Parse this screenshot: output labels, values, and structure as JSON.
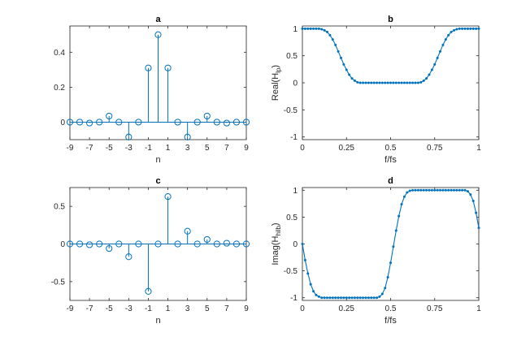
{
  "colors": {
    "series": "#0072bd",
    "axes": "#262626",
    "grid": "#dfdfdf"
  },
  "chart_data": [
    {
      "id": "a",
      "type": "stem",
      "title": "a",
      "xlabel": "n",
      "ylabel": "",
      "xlim": [
        -9,
        9
      ],
      "ylim": [
        -0.1,
        0.55
      ],
      "xticks": [
        -9,
        -7,
        -5,
        -3,
        -1,
        1,
        3,
        5,
        7,
        9
      ],
      "xtick_labels": [
        "-9",
        "-7",
        "-5",
        "-3",
        "-1",
        "1",
        "3",
        "5",
        "7",
        "9"
      ],
      "yticks": [
        0,
        0.2,
        0.4
      ],
      "ytick_labels": [
        "0",
        "0.2",
        "0.4"
      ],
      "grid": true,
      "x": [
        -9,
        -8,
        -7,
        -6,
        -5,
        -4,
        -3,
        -2,
        -1,
        0,
        1,
        2,
        3,
        4,
        5,
        6,
        7,
        8,
        9
      ],
      "y": [
        0,
        0,
        -0.005,
        0,
        0.035,
        0,
        -0.085,
        0,
        0.31,
        0.5,
        0.31,
        0,
        -0.085,
        0,
        0.035,
        0,
        -0.005,
        0,
        0
      ]
    },
    {
      "id": "b",
      "type": "line",
      "title": "b",
      "xlabel": "f/fs",
      "ylabel": "Real(H",
      "ylabel_sub": "lp",
      "ylabel_end": ")",
      "xlim": [
        0,
        1
      ],
      "ylim": [
        -1.05,
        1.05
      ],
      "xticks": [
        0,
        0.25,
        0.5,
        0.75,
        1
      ],
      "xtick_labels": [
        "0",
        "0.25",
        "0.5",
        "0.75",
        "1"
      ],
      "yticks": [
        -1,
        -0.5,
        0,
        0.5,
        1
      ],
      "ytick_labels": [
        "-1",
        "-0.5",
        "0",
        "0.5",
        "1"
      ],
      "grid": true,
      "x": [
        0,
        0.0156,
        0.0313,
        0.0469,
        0.0625,
        0.0781,
        0.0938,
        0.1094,
        0.125,
        0.1406,
        0.1563,
        0.1719,
        0.1875,
        0.2031,
        0.2188,
        0.2344,
        0.25,
        0.2656,
        0.2813,
        0.2969,
        0.3125,
        0.3281,
        0.3438,
        0.3594,
        0.375,
        0.3906,
        0.4063,
        0.4219,
        0.4375,
        0.4531,
        0.4688,
        0.4844,
        0.5,
        0.5156,
        0.5313,
        0.5469,
        0.5625,
        0.5781,
        0.5938,
        0.6094,
        0.625,
        0.6406,
        0.6563,
        0.6719,
        0.6875,
        0.7031,
        0.7188,
        0.7344,
        0.75,
        0.7656,
        0.7813,
        0.7969,
        0.8125,
        0.8281,
        0.8438,
        0.8594,
        0.875,
        0.8906,
        0.9063,
        0.9219,
        0.9375,
        0.9531,
        0.9688,
        0.9844,
        1
      ],
      "y": [
        1,
        1,
        1,
        1,
        1,
        1,
        1,
        0.99,
        0.97,
        0.94,
        0.88,
        0.8,
        0.7,
        0.58,
        0.46,
        0.34,
        0.24,
        0.15,
        0.08,
        0.04,
        0.01,
        0,
        0,
        0,
        0,
        0,
        0,
        0,
        0,
        0,
        0,
        0,
        0,
        0,
        0,
        0,
        0,
        0,
        0,
        0,
        0,
        0,
        0,
        0.01,
        0.04,
        0.08,
        0.15,
        0.24,
        0.34,
        0.46,
        0.58,
        0.7,
        0.8,
        0.88,
        0.94,
        0.97,
        0.99,
        1,
        1,
        1,
        1,
        1,
        1,
        1,
        1
      ]
    },
    {
      "id": "c",
      "type": "stem",
      "title": "c",
      "xlabel": "n",
      "ylabel": "",
      "xlim": [
        -9,
        9
      ],
      "ylim": [
        -0.75,
        0.75
      ],
      "xticks": [
        -9,
        -7,
        -5,
        -3,
        -1,
        1,
        3,
        5,
        7,
        9
      ],
      "xtick_labels": [
        "-9",
        "-7",
        "-5",
        "-3",
        "-1",
        "1",
        "3",
        "5",
        "7",
        "9"
      ],
      "yticks": [
        -0.5,
        0,
        0.5
      ],
      "ytick_labels": [
        "-0.5",
        "0",
        "0.5"
      ],
      "grid": true,
      "x": [
        -9,
        -8,
        -7,
        -6,
        -5,
        -4,
        -3,
        -2,
        -1,
        0,
        1,
        2,
        3,
        4,
        5,
        6,
        7,
        8,
        9
      ],
      "y": [
        0,
        0,
        -0.01,
        0,
        -0.06,
        0,
        -0.17,
        0,
        -0.63,
        0,
        0.63,
        0,
        0.17,
        0,
        0.06,
        0,
        0.01,
        0,
        0
      ]
    },
    {
      "id": "d",
      "type": "line",
      "title": "d",
      "xlabel": "f/fs",
      "ylabel": "Imag(H",
      "ylabel_sub": "hilb",
      "ylabel_end": ")",
      "xlim": [
        0,
        1
      ],
      "ylim": [
        -1.05,
        1.05
      ],
      "xticks": [
        0,
        0.25,
        0.5,
        0.75,
        1
      ],
      "xtick_labels": [
        "0",
        "0.25",
        "0.5",
        "0.75",
        "1"
      ],
      "yticks": [
        -1,
        -0.5,
        0,
        0.5,
        1
      ],
      "ytick_labels": [
        "-1",
        "-0.5",
        "0",
        "0.5",
        "1"
      ],
      "grid": true,
      "x": [
        0,
        0.0156,
        0.0313,
        0.0469,
        0.0625,
        0.0781,
        0.0938,
        0.1094,
        0.125,
        0.1406,
        0.1563,
        0.1719,
        0.1875,
        0.2031,
        0.2188,
        0.2344,
        0.25,
        0.2656,
        0.2813,
        0.2969,
        0.3125,
        0.3281,
        0.3438,
        0.3594,
        0.375,
        0.3906,
        0.4063,
        0.4219,
        0.4375,
        0.4531,
        0.4688,
        0.4844,
        0.5,
        0.5156,
        0.5313,
        0.5469,
        0.5625,
        0.5781,
        0.5938,
        0.6094,
        0.625,
        0.6406,
        0.6563,
        0.6719,
        0.6875,
        0.7031,
        0.7188,
        0.7344,
        0.75,
        0.7656,
        0.7813,
        0.7969,
        0.8125,
        0.8281,
        0.8438,
        0.8594,
        0.875,
        0.8906,
        0.9063,
        0.9219,
        0.9375,
        0.9531,
        0.9688,
        0.9844,
        1
      ],
      "y": [
        0,
        -0.3,
        -0.55,
        -0.75,
        -0.88,
        -0.95,
        -0.98,
        -1,
        -1,
        -1,
        -1,
        -1,
        -1,
        -1,
        -1,
        -1,
        -1,
        -1,
        -1,
        -1,
        -1,
        -1,
        -1,
        -1,
        -1,
        -1,
        -1,
        -1,
        -0.98,
        -0.93,
        -0.82,
        -0.62,
        -0.35,
        -0.05,
        0.25,
        0.52,
        0.74,
        0.88,
        0.96,
        0.99,
        1,
        1,
        1,
        1,
        1,
        1,
        1,
        1,
        1,
        1,
        1,
        1,
        1,
        1,
        1,
        1,
        1,
        1,
        1,
        1,
        0.98,
        0.92,
        0.8,
        0.58,
        0.3
      ]
    }
  ]
}
